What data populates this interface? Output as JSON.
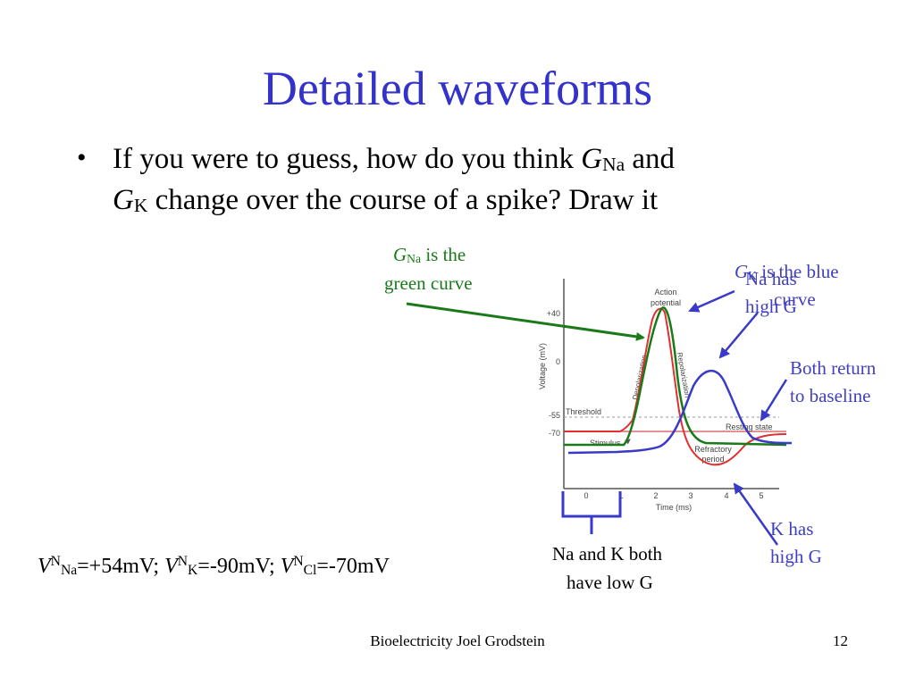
{
  "title": "Detailed waveforms",
  "bullet": {
    "line1_a": "If you were to guess, how do you think ",
    "g1": "G",
    "na_sub": "Na",
    "line1_b": " and",
    "g2": "G",
    "k_sub": "K",
    "line2_b": " change over the course of a spike? Draw it"
  },
  "annotations": {
    "gna_green_g": "G",
    "gna_green_sub": "Na",
    "gna_green_line1": " is the",
    "gna_green_line2": "green curve",
    "gk_blue_g": "G",
    "gk_blue_sub": "K",
    "gk_blue_line1": " is the blue",
    "gk_blue_line2": "curve",
    "na_high_1": "Na has",
    "na_high_2": "high G",
    "both_return_1": "Both return",
    "both_return_2": "to baseline",
    "k_high_1": "K has",
    "k_high_2": "high G",
    "low_g_1": "Na and K both",
    "low_g_2": "have low G"
  },
  "nernst": {
    "v1": "V",
    "n1": "N",
    "na": "Na",
    "val1": "=+54mV; ",
    "v2": "V",
    "n2": "N",
    "k": "K",
    "val2": "=-90mV; ",
    "v3": "V",
    "n3": "N",
    "cl": "Cl",
    "val3": "=-70mV"
  },
  "graph": {
    "y_axis_label": "Voltage (mV)",
    "x_axis_label": "Time (ms)",
    "y_ticks": [
      "+40",
      "0",
      "-55",
      "-70"
    ],
    "x_ticks": [
      "0",
      "1",
      "2",
      "3",
      "4",
      "5"
    ],
    "label_action_1": "Action",
    "label_action_2": "potential",
    "label_depolarization": "Depolarization",
    "label_repolarization": "Repolarization",
    "label_threshold": "Threshold",
    "label_stimulus": "Stimulus",
    "label_resting": "Resting state",
    "label_refractory_1": "Refractory",
    "label_refractory_2": "period",
    "colors": {
      "voltage": "#e03030",
      "gna": "#1a7a1a",
      "gk": "#3a3ac8",
      "axis": "#555555"
    }
  },
  "footer": "Bioelectricity Joel Grodstein",
  "page_number": "12"
}
